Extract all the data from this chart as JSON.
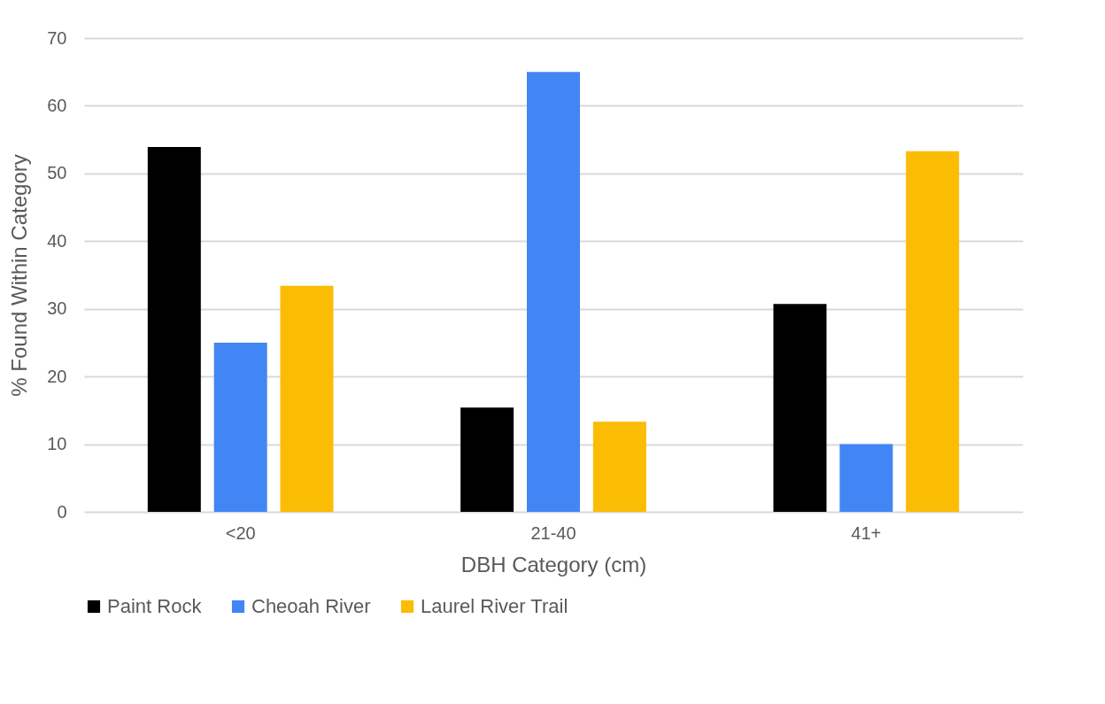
{
  "chart_data": {
    "type": "bar",
    "xlabel": "DBH Category (cm)",
    "ylabel": "% Found Within Category",
    "categories": [
      "<20",
      "21-40",
      "41+"
    ],
    "series": [
      {
        "name": "Paint Rock",
        "color": "#000000",
        "values": [
          53.9,
          15.4,
          30.7
        ]
      },
      {
        "name": "Cheoah River",
        "color": "#4285f4",
        "values": [
          25,
          65,
          10
        ]
      },
      {
        "name": "Laurel River Trail",
        "color": "#fbbc04",
        "values": [
          33.4,
          13.3,
          53.3
        ]
      }
    ],
    "ylim": [
      0,
      70
    ],
    "yticks": [
      0,
      10,
      20,
      30,
      40,
      50,
      60,
      70
    ],
    "grid": "y",
    "legend": "bottom"
  }
}
